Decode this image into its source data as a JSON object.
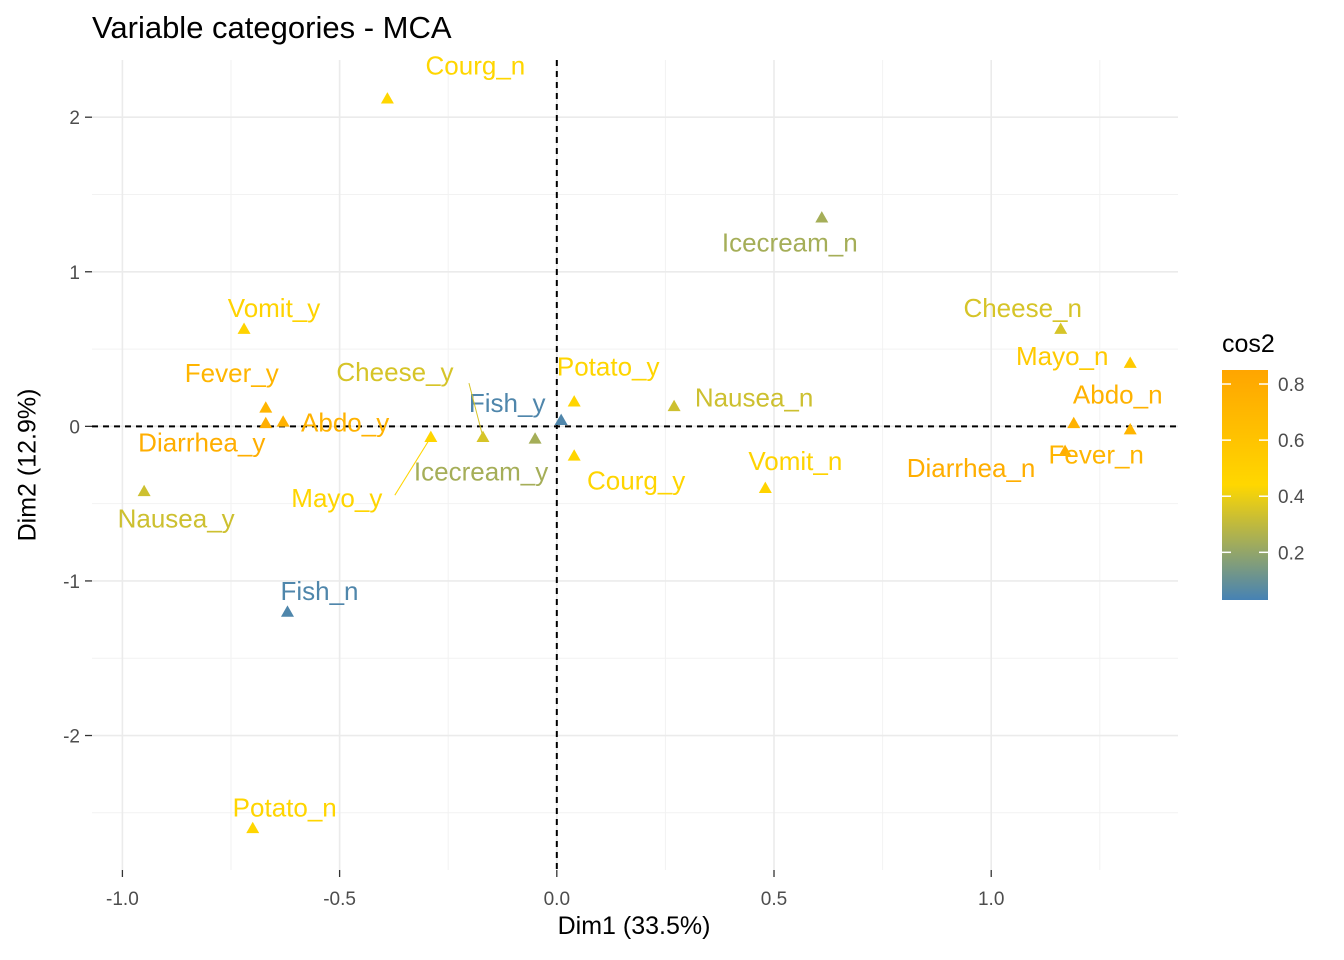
{
  "chart_data": {
    "type": "scatter",
    "title": "Variable categories - MCA",
    "xlabel": "Dim1 (33.5%)",
    "ylabel": "Dim2 (12.9%)",
    "xlim": [
      -1.07,
      1.43
    ],
    "ylim": [
      -2.87,
      2.37
    ],
    "xticks": [
      -1.0,
      -0.5,
      0.0,
      0.5,
      1.0
    ],
    "xtick_labels": [
      "-1.0",
      "-0.5",
      "0.0",
      "0.5",
      "1.0"
    ],
    "yticks": [
      -2,
      -1,
      0,
      1,
      2
    ],
    "ytick_labels": [
      "-2",
      "-1",
      "0",
      "1",
      "2"
    ],
    "grid": true,
    "reference_lines": {
      "x": 0,
      "y": 0,
      "style": "dashed"
    },
    "marker": "triangle",
    "legend": {
      "title": "cos2",
      "position": "right",
      "ticks": [
        0.2,
        0.4,
        0.6,
        0.8
      ],
      "tick_labels": [
        "0.2",
        "0.4",
        "0.6",
        "0.8"
      ],
      "range": [
        0.03,
        0.85
      ],
      "colors": {
        "low": "#4682B4",
        "mid": "#FFD700",
        "high": "#FFA500"
      },
      "midpoint": 0.44
    },
    "points": [
      {
        "label": "Courg_n",
        "x": -0.39,
        "y": 2.12,
        "cos2": 0.45
      },
      {
        "label": "Icecream_n",
        "x": 0.61,
        "y": 1.35,
        "cos2": 0.24
      },
      {
        "label": "Cheese_n",
        "x": 1.16,
        "y": 0.63,
        "cos2": 0.35
      },
      {
        "label": "Mayo_n",
        "x": 1.32,
        "y": 0.41,
        "cos2": 0.55
      },
      {
        "label": "Abdo_n",
        "x": 1.19,
        "y": 0.02,
        "cos2": 0.74
      },
      {
        "label": "Diarrhea_n",
        "x": 1.17,
        "y": -0.16,
        "cos2": 0.78
      },
      {
        "label": "Fever_n",
        "x": 1.32,
        "y": -0.02,
        "cos2": 0.72
      },
      {
        "label": "Vomit_n",
        "x": 0.48,
        "y": -0.4,
        "cos2": 0.47
      },
      {
        "label": "Nausea_n",
        "x": 0.27,
        "y": 0.13,
        "cos2": 0.33
      },
      {
        "label": "Potato_y",
        "x": 0.04,
        "y": 0.16,
        "cos2": 0.46
      },
      {
        "label": "Courg_y",
        "x": 0.04,
        "y": -0.19,
        "cos2": 0.46
      },
      {
        "label": "Fish_y",
        "x": 0.01,
        "y": 0.04,
        "cos2": 0.05
      },
      {
        "label": "Icecream_y",
        "x": -0.05,
        "y": -0.08,
        "cos2": 0.24
      },
      {
        "label": "Cheese_y",
        "x": -0.17,
        "y": -0.07,
        "cos2": 0.35
      },
      {
        "label": "Mayo_y",
        "x": -0.29,
        "y": -0.07,
        "cos2": 0.46
      },
      {
        "label": "Abdo_y",
        "x": -0.63,
        "y": 0.03,
        "cos2": 0.74
      },
      {
        "label": "Fever_y",
        "x": -0.67,
        "y": 0.12,
        "cos2": 0.72
      },
      {
        "label": "Diarrhea_y",
        "x": -0.67,
        "y": 0.02,
        "cos2": 0.78
      },
      {
        "label": "Vomit_y",
        "x": -0.72,
        "y": 0.63,
        "cos2": 0.47
      },
      {
        "label": "Nausea_y",
        "x": -0.95,
        "y": -0.42,
        "cos2": 0.33
      },
      {
        "label": "Fish_n",
        "x": -0.62,
        "y": -1.2,
        "cos2": 0.05
      },
      {
        "label": "Potato_n",
        "x": -0.7,
        "y": -2.6,
        "cos2": 0.46
      }
    ]
  }
}
